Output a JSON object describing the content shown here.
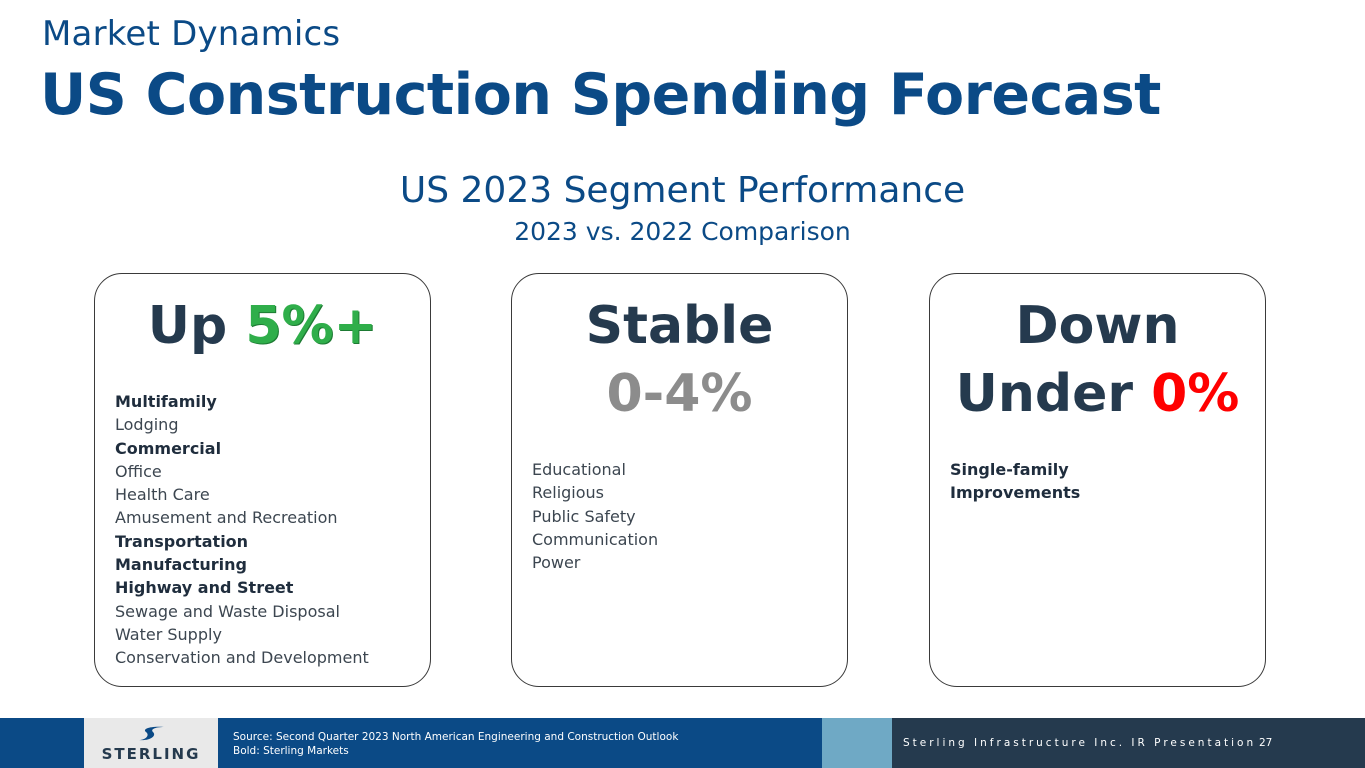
{
  "header": {
    "kicker": "Market Dynamics",
    "title": "US Construction Spending Forecast"
  },
  "section": {
    "title": "US 2023 Segment Performance",
    "comparison": "2023 vs. 2022 Comparison"
  },
  "cards": [
    {
      "heading_prefix": "Up ",
      "heading_value": "5%+",
      "items": [
        {
          "text": "Multifamily",
          "bold": true
        },
        {
          "text": "Lodging",
          "bold": false
        },
        {
          "text": "Commercial",
          "bold": true
        },
        {
          "text": "Office",
          "bold": false
        },
        {
          "text": "Health Care",
          "bold": false
        },
        {
          "text": "Amusement and Recreation",
          "bold": false
        },
        {
          "text": "Transportation",
          "bold": true
        },
        {
          "text": "Manufacturing",
          "bold": true
        },
        {
          "text": "Highway and Street",
          "bold": true
        },
        {
          "text": "Sewage and Waste Disposal",
          "bold": false
        },
        {
          "text": "Water Supply",
          "bold": false
        },
        {
          "text": "Conservation and Development",
          "bold": false
        }
      ]
    },
    {
      "heading_line1": "Stable",
      "heading_value": "0-4%",
      "items": [
        {
          "text": "Educational",
          "bold": false
        },
        {
          "text": "Religious",
          "bold": false
        },
        {
          "text": "Public Safety",
          "bold": false
        },
        {
          "text": "Communication",
          "bold": false
        },
        {
          "text": "Power",
          "bold": false
        }
      ]
    },
    {
      "heading_line1": "Down",
      "heading_prefix": "Under ",
      "heading_value": "0%",
      "items": [
        {
          "text": "Single-family",
          "bold": true
        },
        {
          "text": "Improvements",
          "bold": true
        }
      ]
    }
  ],
  "footer": {
    "source_line1": "Source: Second Quarter 2023 North American Engineering and Construction Outlook",
    "source_line2": "Bold: Sterling Markets",
    "company": "Sterling Infrastructure Inc. IR Presentation",
    "page_number": "27",
    "logo_text": "STERLING"
  },
  "colors": {
    "brand_blue": "#0b4a86",
    "dark_navy": "#253a4e",
    "up_green": "#2fae4a",
    "stable_gray": "#8c8c8c",
    "down_red": "#ff0000",
    "light_blue": "#6fa9c5"
  }
}
